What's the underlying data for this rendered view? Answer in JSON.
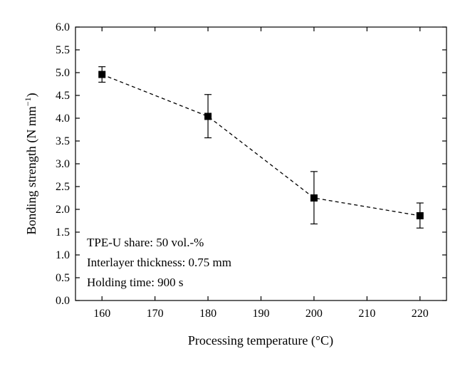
{
  "chart_data": {
    "type": "line",
    "xlabel": "Processing temperature (°C)",
    "ylabel": "Bonding strength (N mm",
    "ylabel_exponent": "−1",
    "ylabel_close": ")",
    "xlim": [
      155,
      225
    ],
    "ylim": [
      0,
      6
    ],
    "xticks": [
      "160",
      "170",
      "180",
      "190",
      "200",
      "210",
      "220"
    ],
    "yticks": [
      "0.0",
      "0.5",
      "1.0",
      "1.5",
      "2.0",
      "2.5",
      "3.0",
      "3.5",
      "4.0",
      "4.5",
      "5.0",
      "5.5",
      "6.0"
    ],
    "grid": false,
    "line_style": "dashed",
    "marker": "square",
    "color": "#000000",
    "series": [
      {
        "x": [
          160,
          180,
          200,
          220
        ],
        "y": [
          4.96,
          4.04,
          2.25,
          1.86
        ],
        "error_low": [
          4.79,
          3.57,
          1.68,
          1.59
        ],
        "error_high": [
          5.13,
          4.52,
          2.83,
          2.14
        ]
      }
    ],
    "annotations": [
      "TPE-U share: 50 vol.-%",
      "Interlayer thickness: 0.75 mm",
      "Holding time: 900 s"
    ]
  }
}
